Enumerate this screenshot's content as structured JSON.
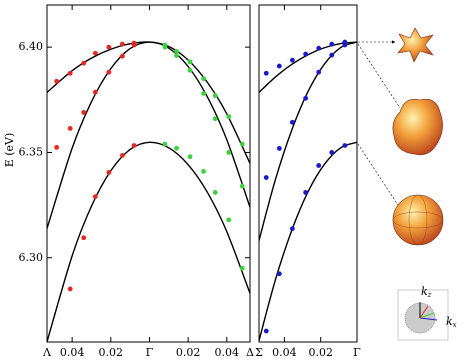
{
  "chart_data": [
    {
      "type": "line",
      "ylabel": "E (eV)",
      "xlim": [
        -0.053,
        0.052
      ],
      "ylim": [
        6.26,
        6.42
      ],
      "xticks": [
        {
          "value": -0.053,
          "label": "Λ"
        },
        {
          "value": -0.04,
          "label": "0.04"
        },
        {
          "value": -0.02,
          "label": "0.02"
        },
        {
          "value": 0,
          "label": "Γ"
        },
        {
          "value": 0.02,
          "label": "0.02"
        },
        {
          "value": 0.04,
          "label": "0.04"
        },
        {
          "value": 0.052,
          "label": "Δ"
        }
      ],
      "yticks": [
        {
          "value": 6.3,
          "label": "6.30"
        },
        {
          "value": 6.35,
          "label": "6.35"
        },
        {
          "value": 6.4,
          "label": "6.40"
        }
      ],
      "series": [
        {
          "style": "line",
          "color": "#000000",
          "x": [
            -0.053,
            -0.04,
            -0.03,
            -0.02,
            -0.01,
            0,
            0.01,
            0.02,
            0.03,
            0.04,
            0.052
          ],
          "values": [
            6.3785,
            6.3888,
            6.3948,
            6.399,
            6.4016,
            6.4024,
            6.4003,
            6.3939,
            6.3832,
            6.3683,
            6.3448
          ]
        },
        {
          "style": "line",
          "color": "#000000",
          "x": [
            -0.053,
            -0.04,
            -0.03,
            -0.02,
            -0.01,
            0,
            0.01,
            0.02,
            0.03,
            0.04,
            0.052
          ],
          "values": [
            6.3139,
            6.352,
            6.3741,
            6.3898,
            6.3993,
            6.4024,
            6.3995,
            6.3908,
            6.3763,
            6.356,
            6.324
          ]
        },
        {
          "style": "line",
          "color": "#000000",
          "x": [
            -0.053,
            -0.04,
            -0.03,
            -0.02,
            -0.01,
            0,
            0.01,
            0.02,
            0.03,
            0.04,
            0.052
          ],
          "values": [
            6.2601,
            6.3009,
            6.3245,
            6.3413,
            6.3514,
            6.3548,
            6.3522,
            6.3442,
            6.331,
            6.3124,
            6.2831
          ]
        },
        {
          "style": "markers",
          "color": "#e8271f",
          "x": [
            -0.048,
            -0.041,
            -0.034,
            -0.028,
            -0.021,
            -0.014,
            -0.008
          ],
          "values": [
            6.3838,
            6.3876,
            6.3924,
            6.3971,
            6.4,
            6.4014,
            6.4019
          ]
        },
        {
          "style": "markers",
          "color": "#e8271f",
          "x": [
            -0.048,
            -0.041,
            -0.034,
            -0.028,
            -0.021,
            -0.014,
            -0.008
          ],
          "values": [
            6.3524,
            6.3614,
            6.369,
            6.3786,
            6.3881,
            6.3957,
            6.401
          ]
        },
        {
          "style": "markers",
          "color": "#e8271f",
          "x": [
            -0.041,
            -0.034,
            -0.028,
            -0.021,
            -0.014,
            -0.008
          ],
          "values": [
            6.2852,
            6.3095,
            6.329,
            6.3405,
            6.3486,
            6.3533
          ]
        },
        {
          "style": "markers",
          "color": "#3cd23c",
          "x": [
            0.008,
            0.014,
            0.021,
            0.028,
            0.034,
            0.041,
            0.048
          ],
          "values": [
            6.401,
            6.398,
            6.393,
            6.385,
            6.377,
            6.367,
            6.354
          ]
        },
        {
          "style": "markers",
          "color": "#3cd23c",
          "x": [
            0.008,
            0.014,
            0.021,
            0.028,
            0.034,
            0.041,
            0.048
          ],
          "values": [
            6.4,
            6.396,
            6.389,
            6.378,
            6.366,
            6.35,
            6.334
          ]
        },
        {
          "style": "markers",
          "color": "#3cd23c",
          "x": [
            0.008,
            0.014,
            0.021,
            0.028,
            0.034,
            0.041,
            0.048
          ],
          "values": [
            6.354,
            6.352,
            6.348,
            6.341,
            6.331,
            6.318,
            6.295
          ]
        }
      ]
    },
    {
      "type": "line",
      "xlim": [
        -0.054,
        0
      ],
      "ylim": [
        6.26,
        6.42
      ],
      "xticks": [
        {
          "value": -0.054,
          "label": "Σ"
        },
        {
          "value": -0.04,
          "label": "0.04"
        },
        {
          "value": -0.02,
          "label": "0.02"
        },
        {
          "value": 0,
          "label": "Γ"
        }
      ],
      "series": [
        {
          "style": "line",
          "color": "#000000",
          "x": [
            -0.054,
            -0.045,
            -0.036,
            -0.027,
            -0.018,
            -0.009,
            0
          ],
          "values": [
            6.3785,
            6.3858,
            6.3918,
            6.3964,
            6.3997,
            6.4017,
            6.4024
          ]
        },
        {
          "style": "line",
          "color": "#000000",
          "x": [
            -0.054,
            -0.045,
            -0.036,
            -0.027,
            -0.018,
            -0.009,
            0
          ],
          "values": [
            6.3082,
            6.337,
            6.3605,
            6.3789,
            6.3919,
            6.3998,
            6.4024
          ]
        },
        {
          "style": "line",
          "color": "#000000",
          "x": [
            -0.054,
            -0.045,
            -0.036,
            -0.027,
            -0.018,
            -0.009,
            0
          ],
          "values": [
            6.2606,
            6.2894,
            6.3129,
            6.3313,
            6.3443,
            6.3522,
            6.3548
          ]
        },
        {
          "style": "markers",
          "color": "#1a1acc",
          "x": [
            -0.05,
            -0.0428,
            -0.0356,
            -0.0283,
            -0.0211,
            -0.0139,
            -0.0067
          ],
          "values": [
            6.3876,
            6.391,
            6.3938,
            6.3967,
            6.3995,
            6.4014,
            6.4024
          ]
        },
        {
          "style": "markers",
          "color": "#1a1acc",
          "x": [
            -0.05,
            -0.0428,
            -0.0356,
            -0.0283,
            -0.0211,
            -0.0139,
            -0.0067
          ],
          "values": [
            6.3381,
            6.3519,
            6.3643,
            6.3757,
            6.3881,
            6.3962,
            6.401
          ]
        },
        {
          "style": "markers",
          "color": "#1a1acc",
          "x": [
            -0.05,
            -0.0428,
            -0.0356,
            -0.0283,
            -0.0211,
            -0.0139,
            -0.0067
          ],
          "values": [
            6.2652,
            6.2924,
            6.3138,
            6.331,
            6.3438,
            6.35,
            6.3533
          ]
        }
      ]
    }
  ],
  "inset": {
    "axis_labels": [
      {
        "symbol": "k",
        "subscript": "z"
      },
      {
        "symbol": "k",
        "subscript": "x"
      }
    ]
  }
}
